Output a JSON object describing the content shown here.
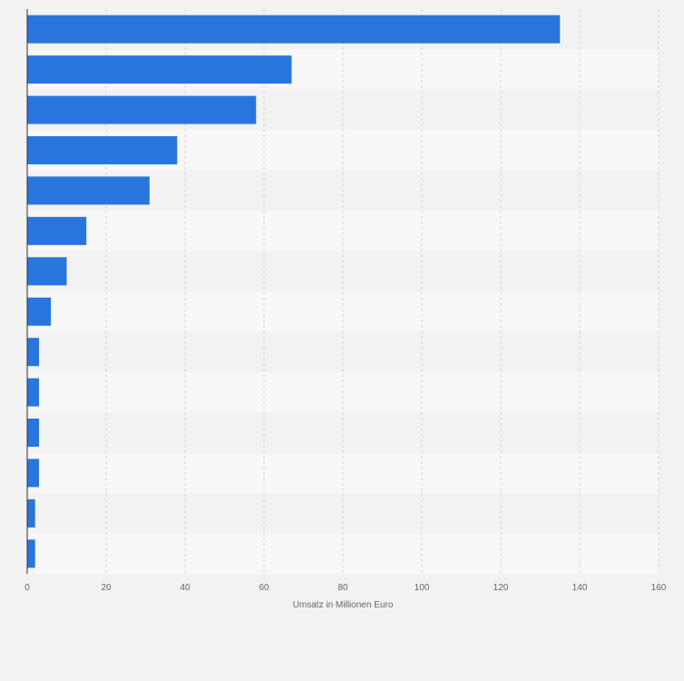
{
  "chart_data": {
    "type": "bar",
    "orientation": "horizontal",
    "title": "",
    "xlabel": "Umsatz in Millionen Euro",
    "ylabel": "",
    "xlim": [
      0,
      160
    ],
    "xticks": [
      "0",
      "20",
      "40",
      "60",
      "80",
      "100",
      "120",
      "140",
      "160"
    ],
    "categories": [
      "",
      "",
      "",
      "",
      "",
      "",
      "",
      "",
      "",
      "",
      "",
      "",
      "",
      ""
    ],
    "values": [
      135,
      67,
      58,
      38,
      31,
      15,
      10,
      6,
      3,
      3,
      3,
      3,
      2,
      2
    ],
    "grid": true,
    "colors": {
      "bar": "#2876dd",
      "band_light": "#f7f7f7",
      "band_dark": "#f2f2f2",
      "grid": "#d4d4d4",
      "axis": "#333333",
      "text": "#666666"
    }
  }
}
